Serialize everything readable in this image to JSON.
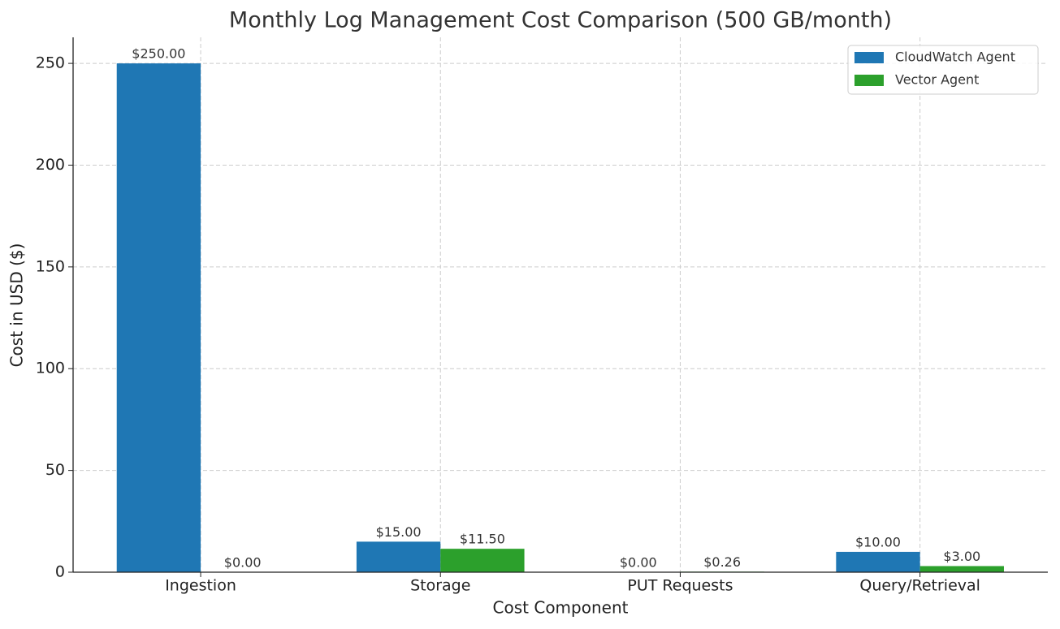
{
  "chart_data": {
    "type": "bar",
    "title": "Monthly Log Management Cost Comparison (500 GB/month)",
    "xlabel": "Cost Component",
    "ylabel": "Cost in USD ($)",
    "categories": [
      "Ingestion",
      "Storage",
      "PUT Requests",
      "Query/Retrieval"
    ],
    "series": [
      {
        "name": "CloudWatch Agent",
        "color": "#1f77b4",
        "values": [
          250,
          15,
          0,
          10
        ],
        "value_labels": [
          "$250.00",
          "$15.00",
          "$0.00",
          "$10.00"
        ]
      },
      {
        "name": "Vector Agent",
        "color": "#2ca02c",
        "values": [
          0,
          11.5,
          0.26,
          3
        ],
        "value_labels": [
          "$0.00",
          "$11.50",
          "$0.26",
          "$3.00"
        ]
      }
    ],
    "ylim": [
      0,
      262.8
    ],
    "yticks": [
      0,
      50,
      100,
      150,
      200,
      250
    ],
    "grid": true,
    "legend": "upper right"
  }
}
